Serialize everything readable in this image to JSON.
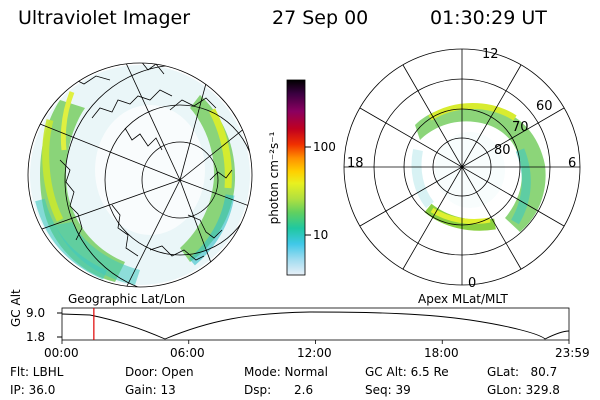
{
  "header": {
    "instrument": "Ultraviolet Imager",
    "date": "27 Sep 00",
    "time": "01:30:29 UT"
  },
  "colorbar": {
    "label": "photon cm⁻²s⁻¹",
    "ticks": [
      "100",
      "10"
    ],
    "colors": [
      "#000000",
      "#3a0040",
      "#8a0060",
      "#c00020",
      "#f03000",
      "#ff9000",
      "#ffd000",
      "#e8f020",
      "#b0e040",
      "#60d060",
      "#20c8a0",
      "#40c8e8",
      "#a0dcf0",
      "#e8f0f8"
    ]
  },
  "geo_panel": {
    "caption": "Geographic Lat/Lon"
  },
  "polar_panel": {
    "caption": "Apex MLat/MLT",
    "mlt_labels": {
      "top": "12",
      "bottom": "0",
      "left": "18",
      "right": "6"
    },
    "lat_labels": [
      "60",
      "70",
      "80"
    ]
  },
  "timeline": {
    "axis_label": "GC Alt",
    "y_ticks": [
      "9.0",
      "1.8"
    ],
    "x_ticks": [
      "00:00",
      "06:00",
      "12:00",
      "18:00",
      "23:59"
    ],
    "marker_time_hours": 1.508
  },
  "status": {
    "filter": "Flt: LBHL",
    "ip": "IP: 36.0",
    "door": "Door: Open",
    "gain": "Gain: 13",
    "mode": "Mode: Normal",
    "dsp": "Dsp:      2.6",
    "gc_alt": "GC Alt: 6.5 Re",
    "seq": "Seq: 39",
    "glat": "GLat:   80.7",
    "glon": "GLon: 329.8"
  }
}
